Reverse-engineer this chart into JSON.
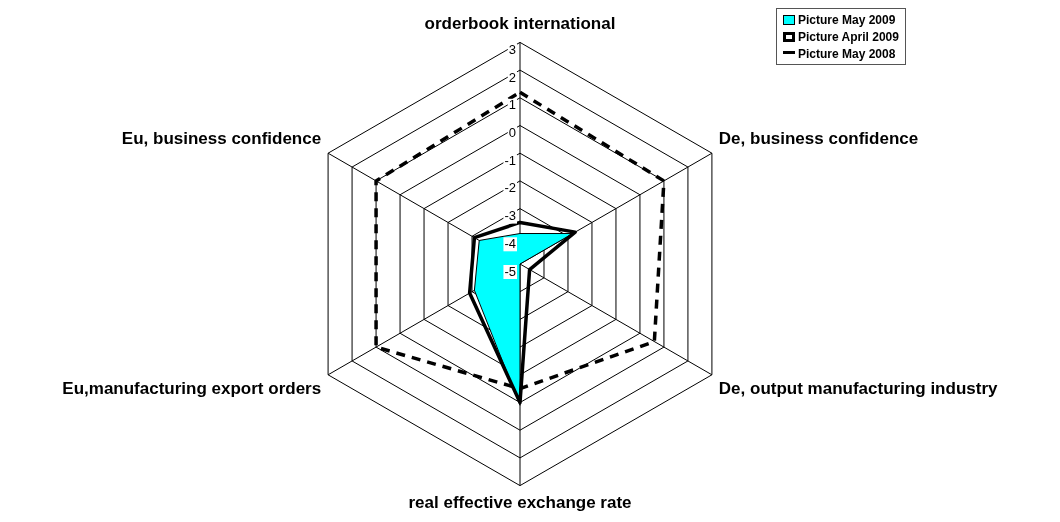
{
  "chart_data": {
    "type": "radar",
    "categories": [
      "orderbook international",
      "De, business confidence",
      "De, output manufacturing industry",
      "real effective exchange rate",
      "Eu,manufacturing export orders",
      "Eu, business confidence"
    ],
    "series": [
      {
        "name": "Picture May 2009",
        "type": "area",
        "color": "#00ffff",
        "line_style": "solid",
        "values": [
          -3.9,
          -2.8,
          -5,
          0.1,
          -3.1,
          -3.3
        ]
      },
      {
        "name": "Picture April 2009",
        "color": "#000000",
        "line_style": "solid",
        "values": [
          -3.5,
          -2.7,
          -4.6,
          0,
          -2.9,
          -3.1
        ]
      },
      {
        "name": "Picture May 2008",
        "color": "#000000",
        "line_style": "dashed",
        "values": [
          1.2,
          1,
          0.6,
          -0.5,
          1,
          1
        ]
      }
    ],
    "ylim": [
      -5,
      3
    ],
    "yticks": [
      -5,
      -4,
      -3,
      -2,
      -1,
      0,
      1,
      2,
      3
    ],
    "grid": true,
    "legend": "top right",
    "marker": "none"
  }
}
